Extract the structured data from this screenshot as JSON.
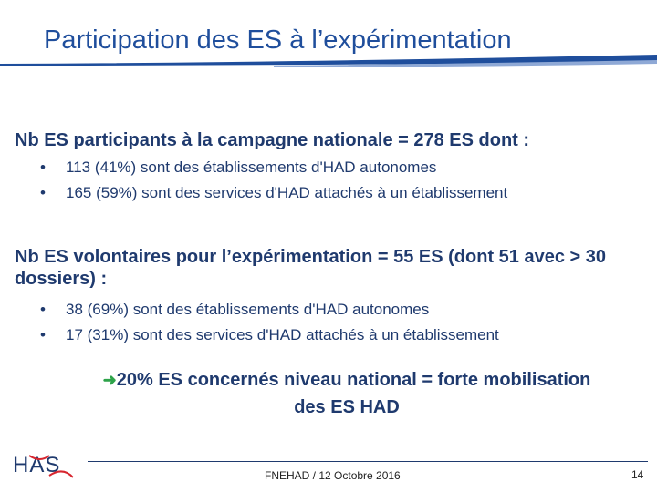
{
  "slide": {
    "title": "Participation des ES à l’expérimentation",
    "section1": {
      "heading": "Nb ES participants à la campagne nationale = 278 ES dont :",
      "bullets": [
        "113 (41%) sont des établissements d'HAD autonomes",
        "165 (59%) sont des services d'HAD attachés à un établissement"
      ]
    },
    "section2": {
      "heading": "Nb ES volontaires pour l’expérimentation = 55 ES (dont 51 avec > 30 dossiers) :",
      "bullets": [
        "38 (69%) sont des établissements d'HAD autonomes",
        "17 (31%) sont des services d'HAD attachés à un établissement"
      ]
    },
    "conclusion": {
      "arrow_icon": "right-arrow-icon",
      "line1": "20% ES concernés niveau national = forte mobilisation",
      "line2": "des ES HAD"
    },
    "bullet_glyph": "•",
    "footer": {
      "logo_text": "HAS",
      "text": "FNEHAD / 12 Octobre 2016",
      "page_number": "14"
    },
    "colors": {
      "title": "#1f4e9c",
      "text": "#1f3a6e",
      "arrow": "#2ea34a",
      "logo_red": "#d7262f"
    }
  }
}
